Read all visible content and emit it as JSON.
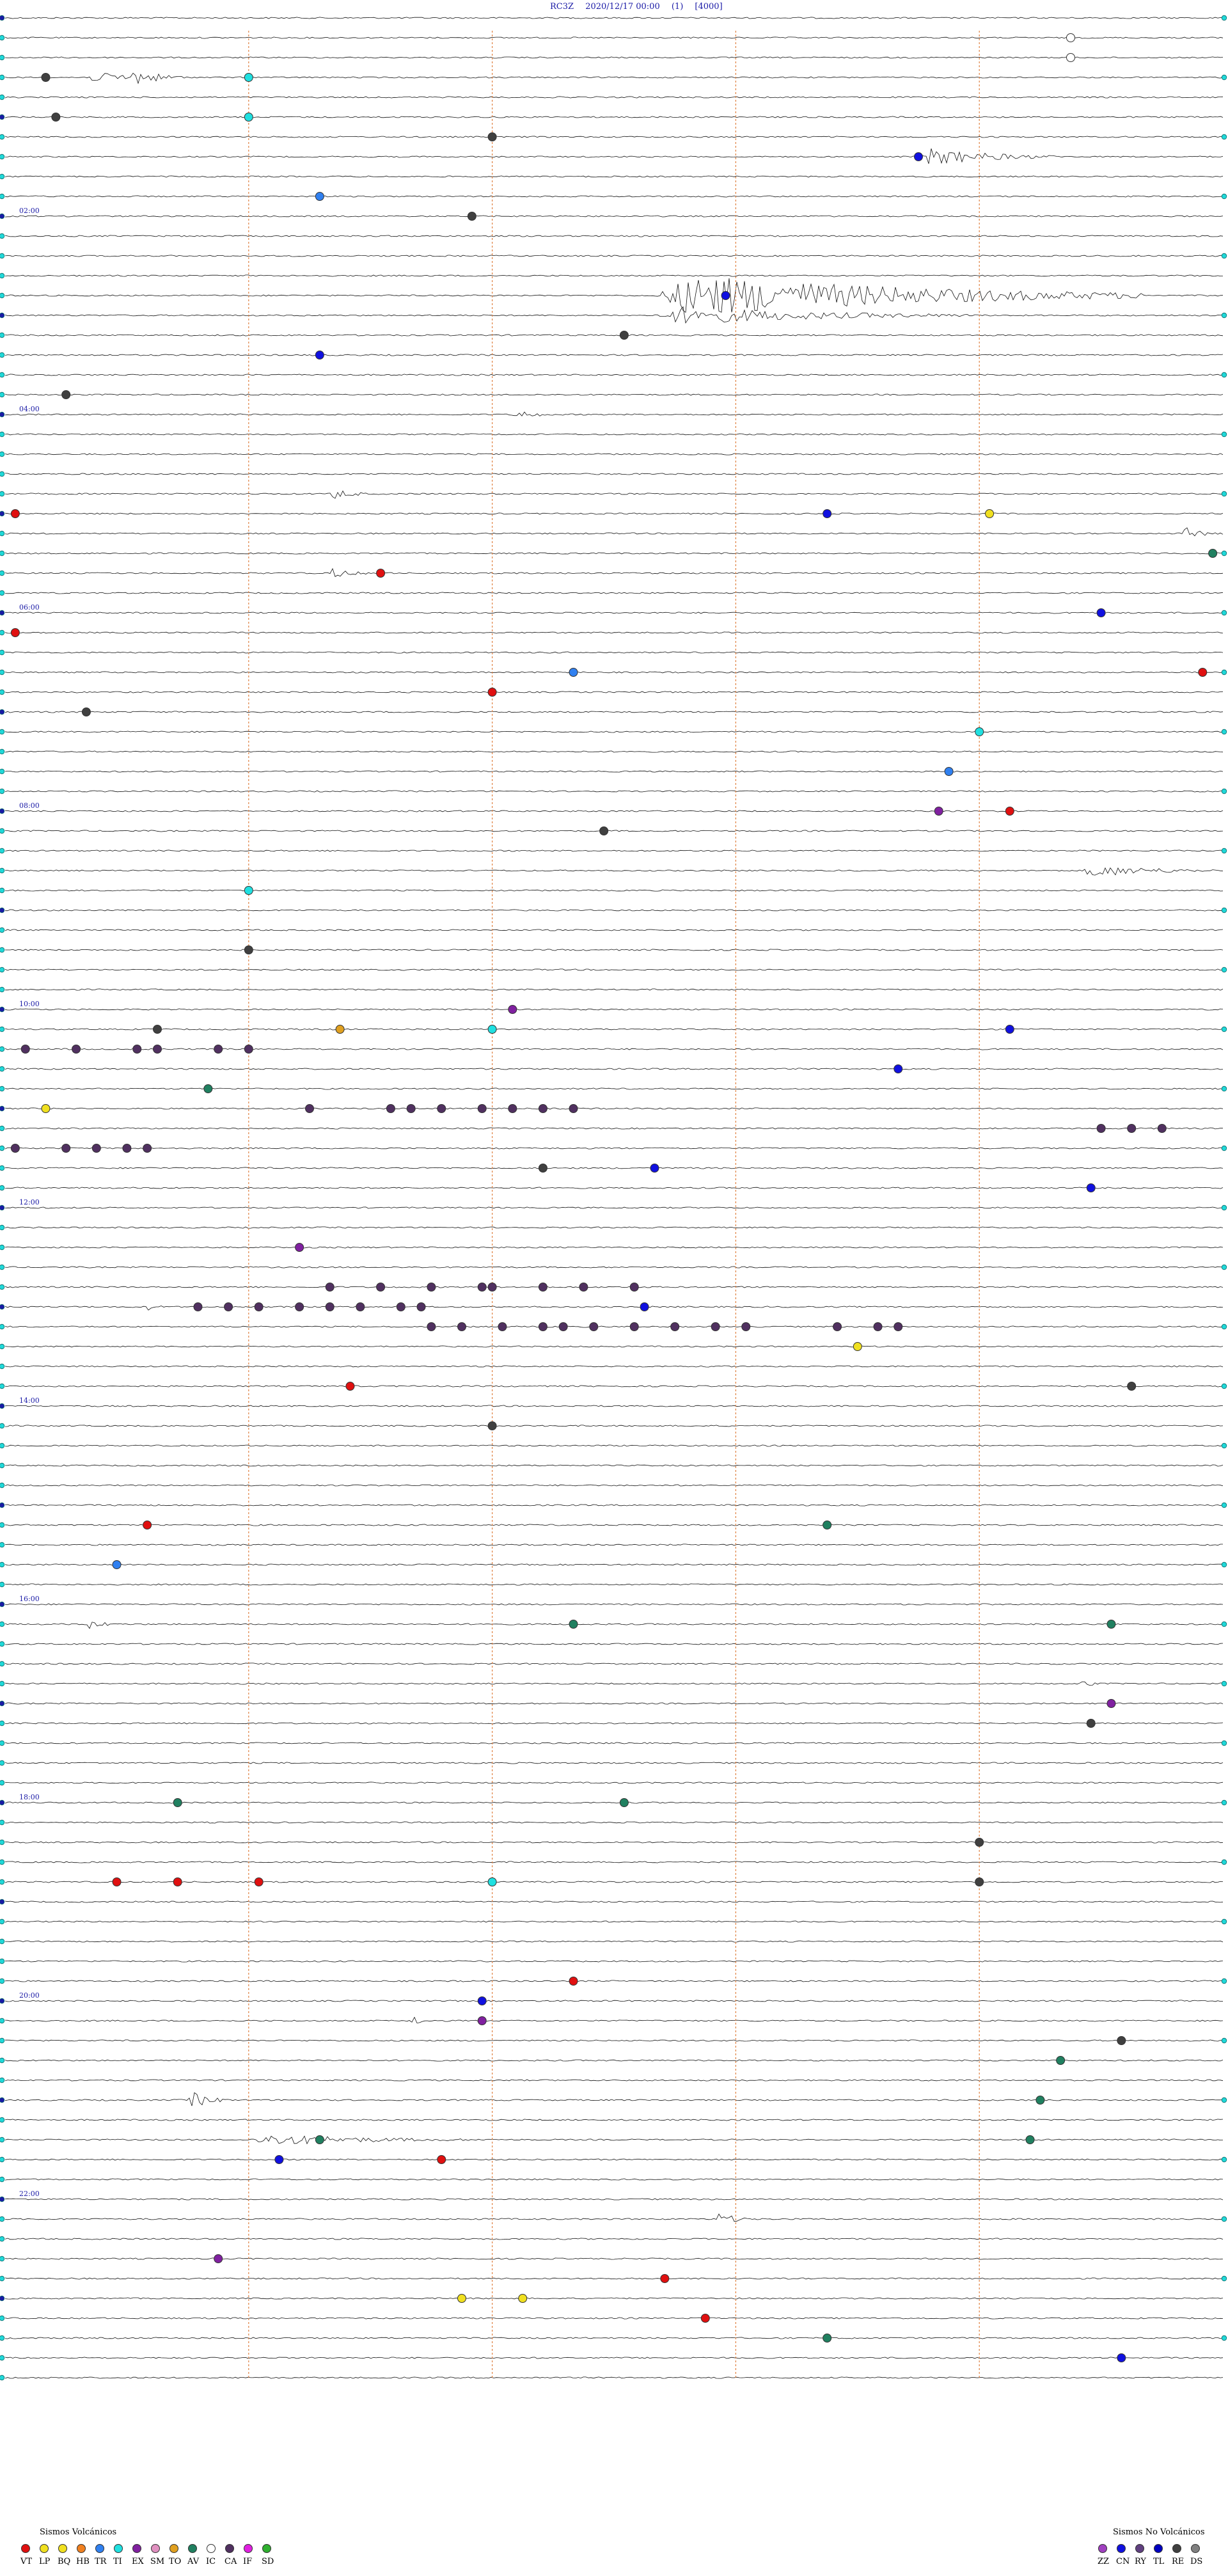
{
  "header": {
    "station": "RC3Z",
    "datetime": "2020/12/17 00:00",
    "channel": "(1)",
    "scale": "[4000]"
  },
  "chart_data": {
    "type": "helicorder",
    "traces_per_hour": 5,
    "hours": 24,
    "hour_labels": [
      "02:00",
      "04:00",
      "06:00",
      "08:00",
      "10:00",
      "12:00",
      "14:00",
      "16:00",
      "18:00",
      "20:00",
      "22:00"
    ],
    "hour_label_hours": [
      2,
      4,
      6,
      8,
      10,
      12,
      14,
      16,
      18,
      20,
      22
    ],
    "minute_markers": [
      12,
      24,
      36,
      48
    ],
    "event_colors": {
      "VT": "#e01010",
      "LP": "#f0e020",
      "BQ": "#f0e020",
      "HB": "#f08020",
      "TR": "#3080f0",
      "TI": "#20e0e0",
      "EX": "#8020a0",
      "SM": "#e090c0",
      "TO": "#e0a020",
      "AV": "#208060",
      "IC": "#ffffff",
      "CA": "#503060",
      "IF": "#e020e0",
      "SD": "#30b030",
      "ZZ": "#a040c0",
      "CN": "#1010e0",
      "RY": "#604080",
      "TL": "#0000c0",
      "RE": "#404040",
      "DS": "#808080"
    },
    "events": [
      {
        "trace": 1,
        "minute": 52.5,
        "type": "IC"
      },
      {
        "trace": 2,
        "minute": 52.5,
        "type": "IC"
      },
      {
        "trace": 3,
        "minute": 2.0,
        "type": "RE"
      },
      {
        "trace": 3,
        "minute": 12.0,
        "type": "TI"
      },
      {
        "trace": 5,
        "minute": 2.5,
        "type": "RE"
      },
      {
        "trace": 5,
        "minute": 12.0,
        "type": "TI"
      },
      {
        "trace": 6,
        "minute": 24.0,
        "type": "RE"
      },
      {
        "trace": 7,
        "minute": 45.0,
        "type": "CN"
      },
      {
        "trace": 9,
        "minute": 15.5,
        "type": "TR"
      },
      {
        "trace": 10,
        "minute": 23.0,
        "type": "RE"
      },
      {
        "trace": 14,
        "minute": 35.5,
        "type": "CN"
      },
      {
        "trace": 16,
        "minute": 30.5,
        "type": "RE"
      },
      {
        "trace": 17,
        "minute": 15.5,
        "type": "CN"
      },
      {
        "trace": 19,
        "minute": 3.0,
        "type": "RE"
      },
      {
        "trace": 25,
        "minute": 0.5,
        "type": "VT"
      },
      {
        "trace": 25,
        "minute": 48.5,
        "type": "LP"
      },
      {
        "trace": 25,
        "minute": 40.5,
        "type": "CN"
      },
      {
        "trace": 28,
        "minute": 18.5,
        "type": "VT"
      },
      {
        "trace": 27,
        "minute": 59.5,
        "type": "AV"
      },
      {
        "trace": 30,
        "minute": 54.0,
        "type": "CN"
      },
      {
        "trace": 31,
        "minute": 0.5,
        "type": "VT"
      },
      {
        "trace": 33,
        "minute": 28.0,
        "type": "TR"
      },
      {
        "trace": 34,
        "minute": 24.0,
        "type": "VT"
      },
      {
        "trace": 33,
        "minute": 59.0,
        "type": "VT"
      },
      {
        "trace": 35,
        "minute": 4.0,
        "type": "RE"
      },
      {
        "trace": 36,
        "minute": 48.0,
        "type": "TI"
      },
      {
        "trace": 38,
        "minute": 46.5,
        "type": "TR"
      },
      {
        "trace": 40,
        "minute": 46.0,
        "type": "EX"
      },
      {
        "trace": 40,
        "minute": 49.5,
        "type": "VT"
      },
      {
        "trace": 41,
        "minute": 29.5,
        "type": "RE"
      },
      {
        "trace": 44,
        "minute": 12.0,
        "type": "TI"
      },
      {
        "trace": 47,
        "minute": 12.0,
        "type": "RE"
      },
      {
        "trace": 51,
        "minute": 7.5,
        "type": "RE"
      },
      {
        "trace": 51,
        "minute": 24.0,
        "type": "TI"
      },
      {
        "trace": 50,
        "minute": 25.0,
        "type": "EX"
      },
      {
        "trace": 51,
        "minute": 49.5,
        "type": "CN"
      },
      {
        "trace": 51,
        "minute": 16.5,
        "type": "TO"
      },
      {
        "trace": 52,
        "minute": 1.0,
        "type": "CA"
      },
      {
        "trace": 52,
        "minute": 3.5,
        "type": "CA"
      },
      {
        "trace": 52,
        "minute": 6.5,
        "type": "CA"
      },
      {
        "trace": 52,
        "minute": 7.5,
        "type": "CA"
      },
      {
        "trace": 52,
        "minute": 10.5,
        "type": "CA"
      },
      {
        "trace": 52,
        "minute": 12.0,
        "type": "CA"
      },
      {
        "trace": 53,
        "minute": 44.0,
        "type": "CN"
      },
      {
        "trace": 55,
        "minute": 2.0,
        "type": "LP"
      },
      {
        "trace": 54,
        "minute": 10.0,
        "type": "AV"
      },
      {
        "trace": 55,
        "minute": 15.0,
        "type": "CA"
      },
      {
        "trace": 55,
        "minute": 19.0,
        "type": "CA"
      },
      {
        "trace": 55,
        "minute": 20.0,
        "type": "CA"
      },
      {
        "trace": 55,
        "minute": 21.5,
        "type": "CA"
      },
      {
        "trace": 55,
        "minute": 23.5,
        "type": "CA"
      },
      {
        "trace": 55,
        "minute": 25.0,
        "type": "CA"
      },
      {
        "trace": 55,
        "minute": 26.5,
        "type": "CA"
      },
      {
        "trace": 55,
        "minute": 28.0,
        "type": "CA"
      },
      {
        "trace": 57,
        "minute": 0.5,
        "type": "CA"
      },
      {
        "trace": 57,
        "minute": 3.0,
        "type": "CA"
      },
      {
        "trace": 57,
        "minute": 4.5,
        "type": "CA"
      },
      {
        "trace": 57,
        "minute": 6.0,
        "type": "CA"
      },
      {
        "trace": 57,
        "minute": 7.0,
        "type": "CA"
      },
      {
        "trace": 56,
        "minute": 54.0,
        "type": "CA"
      },
      {
        "trace": 56,
        "minute": 55.5,
        "type": "CA"
      },
      {
        "trace": 56,
        "minute": 57.0,
        "type": "CA"
      },
      {
        "trace": 58,
        "minute": 26.5,
        "type": "RE"
      },
      {
        "trace": 58,
        "minute": 32.0,
        "type": "CN"
      },
      {
        "trace": 59,
        "minute": 53.5,
        "type": "CN"
      },
      {
        "trace": 62,
        "minute": 14.5,
        "type": "EX"
      },
      {
        "trace": 64,
        "minute": 16.0,
        "type": "CA"
      },
      {
        "trace": 64,
        "minute": 18.5,
        "type": "CA"
      },
      {
        "trace": 64,
        "minute": 21.0,
        "type": "CA"
      },
      {
        "trace": 64,
        "minute": 23.5,
        "type": "CA"
      },
      {
        "trace": 64,
        "minute": 24.0,
        "type": "CA"
      },
      {
        "trace": 64,
        "minute": 26.5,
        "type": "CA"
      },
      {
        "trace": 64,
        "minute": 28.5,
        "type": "CA"
      },
      {
        "trace": 64,
        "minute": 31.0,
        "type": "CA"
      },
      {
        "trace": 65,
        "minute": 9.5,
        "type": "CA"
      },
      {
        "trace": 65,
        "minute": 11.0,
        "type": "CA"
      },
      {
        "trace": 65,
        "minute": 12.5,
        "type": "CA"
      },
      {
        "trace": 65,
        "minute": 14.5,
        "type": "CA"
      },
      {
        "trace": 65,
        "minute": 16.0,
        "type": "CA"
      },
      {
        "trace": 65,
        "minute": 17.5,
        "type": "CA"
      },
      {
        "trace": 65,
        "minute": 19.5,
        "type": "CA"
      },
      {
        "trace": 65,
        "minute": 20.5,
        "type": "CA"
      },
      {
        "trace": 66,
        "minute": 21.0,
        "type": "CA"
      },
      {
        "trace": 66,
        "minute": 22.5,
        "type": "CA"
      },
      {
        "trace": 66,
        "minute": 24.5,
        "type": "CA"
      },
      {
        "trace": 66,
        "minute": 26.5,
        "type": "CA"
      },
      {
        "trace": 66,
        "minute": 27.5,
        "type": "CA"
      },
      {
        "trace": 66,
        "minute": 29.0,
        "type": "CA"
      },
      {
        "trace": 66,
        "minute": 31.0,
        "type": "CA"
      },
      {
        "trace": 66,
        "minute": 33.0,
        "type": "CA"
      },
      {
        "trace": 66,
        "minute": 35.0,
        "type": "CA"
      },
      {
        "trace": 66,
        "minute": 36.5,
        "type": "CA"
      },
      {
        "trace": 66,
        "minute": 41.0,
        "type": "CA"
      },
      {
        "trace": 66,
        "minute": 43.0,
        "type": "CA"
      },
      {
        "trace": 66,
        "minute": 44.0,
        "type": "CA"
      },
      {
        "trace": 65,
        "minute": 31.5,
        "type": "CN"
      },
      {
        "trace": 67,
        "minute": 42.0,
        "type": "LP"
      },
      {
        "trace": 69,
        "minute": 17.0,
        "type": "VT"
      },
      {
        "trace": 69,
        "minute": 55.5,
        "type": "RE"
      },
      {
        "trace": 71,
        "minute": 24.0,
        "type": "RE"
      },
      {
        "trace": 76,
        "minute": 7.0,
        "type": "VT"
      },
      {
        "trace": 76,
        "minute": 40.5,
        "type": "AV"
      },
      {
        "trace": 78,
        "minute": 5.5,
        "type": "TR"
      },
      {
        "trace": 81,
        "minute": 28.0,
        "type": "AV"
      },
      {
        "trace": 81,
        "minute": 54.5,
        "type": "AV"
      },
      {
        "trace": 85,
        "minute": 54.5,
        "type": "EX"
      },
      {
        "trace": 86,
        "minute": 53.5,
        "type": "RE"
      },
      {
        "trace": 90,
        "minute": 8.5,
        "type": "AV"
      },
      {
        "trace": 90,
        "minute": 30.5,
        "type": "AV"
      },
      {
        "trace": 92,
        "minute": 48.0,
        "type": "RE"
      },
      {
        "trace": 94,
        "minute": 5.5,
        "type": "VT"
      },
      {
        "trace": 94,
        "minute": 8.5,
        "type": "VT"
      },
      {
        "trace": 94,
        "minute": 12.5,
        "type": "VT"
      },
      {
        "trace": 94,
        "minute": 24.0,
        "type": "TI"
      },
      {
        "trace": 94,
        "minute": 48.0,
        "type": "RE"
      },
      {
        "trace": 99,
        "minute": 28.0,
        "type": "VT"
      },
      {
        "trace": 100,
        "minute": 23.5,
        "type": "CN"
      },
      {
        "trace": 101,
        "minute": 23.5,
        "type": "EX"
      },
      {
        "trace": 102,
        "minute": 55.0,
        "type": "RE"
      },
      {
        "trace": 103,
        "minute": 52.0,
        "type": "AV"
      },
      {
        "trace": 105,
        "minute": 51.0,
        "type": "AV"
      },
      {
        "trace": 107,
        "minute": 15.5,
        "type": "AV"
      },
      {
        "trace": 107,
        "minute": 50.5,
        "type": "AV"
      },
      {
        "trace": 108,
        "minute": 21.5,
        "type": "VT"
      },
      {
        "trace": 108,
        "minute": 13.5,
        "type": "CN"
      },
      {
        "trace": 113,
        "minute": 10.5,
        "type": "EX"
      },
      {
        "trace": 114,
        "minute": 32.5,
        "type": "VT"
      },
      {
        "trace": 115,
        "minute": 22.5,
        "type": "LP"
      },
      {
        "trace": 115,
        "minute": 25.5,
        "type": "LP"
      },
      {
        "trace": 116,
        "minute": 34.5,
        "type": "VT"
      },
      {
        "trace": 117,
        "minute": 40.5,
        "type": "AV"
      },
      {
        "trace": 118,
        "minute": 55.0,
        "type": "CN"
      }
    ],
    "bursts": [
      {
        "trace": 3,
        "start": 4,
        "end": 9,
        "amp": 8
      },
      {
        "trace": 3,
        "start": 6,
        "end": 9,
        "amp": 14
      },
      {
        "trace": 7,
        "start": 45,
        "end": 52,
        "amp": 14
      },
      {
        "trace": 14,
        "start": 32,
        "end": 56,
        "amp": 34
      },
      {
        "trace": 15,
        "start": 32,
        "end": 48,
        "amp": 14
      },
      {
        "trace": 43,
        "start": 53,
        "end": 60,
        "amp": 10
      },
      {
        "trace": 24,
        "start": 16,
        "end": 18,
        "amp": 10
      },
      {
        "trace": 20,
        "start": 25,
        "end": 27,
        "amp": 9
      },
      {
        "trace": 28,
        "start": 16,
        "end": 18,
        "amp": 9
      },
      {
        "trace": 26,
        "start": 58,
        "end": 60,
        "amp": 10
      },
      {
        "trace": 101,
        "start": 20,
        "end": 21,
        "amp": 9
      },
      {
        "trace": 105,
        "start": 9,
        "end": 11,
        "amp": 14
      },
      {
        "trace": 107,
        "start": 12,
        "end": 24,
        "amp": 9
      },
      {
        "trace": 111,
        "start": 35,
        "end": 37,
        "amp": 10
      },
      {
        "trace": 65,
        "start": 7,
        "end": 8,
        "amp": 7
      },
      {
        "trace": 81,
        "start": 4,
        "end": 6,
        "amp": 7
      },
      {
        "trace": 84,
        "start": 53,
        "end": 54,
        "amp": 8
      }
    ]
  },
  "legend": {
    "volcanic_title": "Sismos Volcánicos",
    "volcanic_codes": [
      "VT",
      "LP",
      "BQ",
      "HB",
      "TR",
      "TI",
      "EX",
      "SM",
      "TO",
      "AV",
      "IC",
      "CA",
      "IF",
      "SD"
    ],
    "nonvolcanic_title": "Sismos No Volcánicos",
    "nonvolcanic_codes": [
      "ZZ",
      "CN",
      "RY",
      "TL",
      "RE",
      "DS"
    ]
  }
}
